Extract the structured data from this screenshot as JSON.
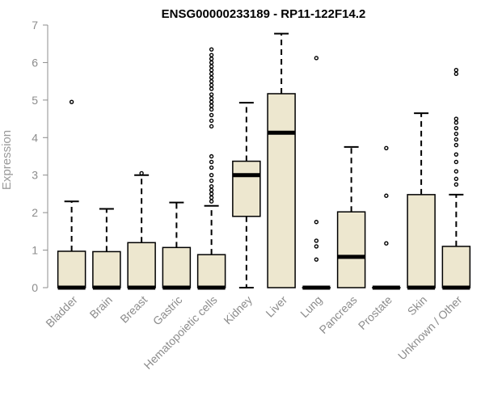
{
  "chart_data": {
    "type": "boxplot",
    "title": "ENSG00000233189 - RP11-122F14.2",
    "xlabel": "",
    "ylabel": "Expression",
    "ylim": [
      0,
      7
    ],
    "yticks": [
      0,
      1,
      2,
      3,
      4,
      5,
      6,
      7
    ],
    "grid": false,
    "colors": {
      "box_fill": "#ede7cf",
      "stroke": "#000000",
      "axis": "#8c8c8c",
      "text": "#8c8c8c"
    },
    "categories": [
      "Bladder",
      "Brain",
      "Breast",
      "Gastric",
      "Hematopoietic cells",
      "Kidney",
      "Liver",
      "Lung",
      "Pancreas",
      "Prostate",
      "Skin",
      "Unknown / Other"
    ],
    "boxes": [
      {
        "category": "Bladder",
        "lower_whisker": 0,
        "q1": 0,
        "median": 0,
        "q3": 0.97,
        "upper_whisker": 2.3,
        "outliers": [
          4.95
        ]
      },
      {
        "category": "Brain",
        "lower_whisker": 0,
        "q1": 0,
        "median": 0,
        "q3": 0.96,
        "upper_whisker": 2.1,
        "outliers": []
      },
      {
        "category": "Breast",
        "lower_whisker": 0,
        "q1": 0,
        "median": 0,
        "q3": 1.2,
        "upper_whisker": 3.0,
        "outliers": [
          3.05
        ]
      },
      {
        "category": "Gastric",
        "lower_whisker": 0,
        "q1": 0,
        "median": 0,
        "q3": 1.07,
        "upper_whisker": 2.27,
        "outliers": []
      },
      {
        "category": "Hematopoietic cells",
        "lower_whisker": 0,
        "q1": 0,
        "median": 0,
        "q3": 0.88,
        "upper_whisker": 2.18,
        "outliers": [
          2.3,
          2.4,
          2.5,
          2.6,
          2.7,
          2.85,
          3.0,
          3.2,
          3.35,
          3.5,
          4.3,
          4.45,
          4.6,
          4.75,
          4.85,
          4.95,
          5.05,
          5.15,
          5.3,
          5.4,
          5.5,
          5.6,
          5.7,
          5.8,
          5.9,
          6.0,
          6.1,
          6.2,
          6.35
        ]
      },
      {
        "category": "Kidney",
        "lower_whisker": 0,
        "q1": 1.9,
        "median": 3.0,
        "q3": 3.37,
        "upper_whisker": 4.93,
        "outliers": []
      },
      {
        "category": "Liver",
        "lower_whisker": 0,
        "q1": 0,
        "median": 4.13,
        "q3": 5.17,
        "upper_whisker": 6.77,
        "outliers": []
      },
      {
        "category": "Lung",
        "lower_whisker": 0,
        "q1": 0,
        "median": 0,
        "q3": 0,
        "upper_whisker": 0,
        "outliers": [
          0.75,
          1.1,
          1.25,
          1.75,
          6.12
        ]
      },
      {
        "category": "Pancreas",
        "lower_whisker": 0,
        "q1": 0,
        "median": 0.82,
        "q3": 2.02,
        "upper_whisker": 3.75,
        "outliers": []
      },
      {
        "category": "Prostate",
        "lower_whisker": 0,
        "q1": 0,
        "median": 0,
        "q3": 0,
        "upper_whisker": 0,
        "outliers": [
          1.18,
          2.45,
          3.72
        ]
      },
      {
        "category": "Skin",
        "lower_whisker": 0,
        "q1": 0,
        "median": 0,
        "q3": 2.48,
        "upper_whisker": 4.65,
        "outliers": []
      },
      {
        "category": "Unknown / Other",
        "lower_whisker": 0,
        "q1": 0,
        "median": 0,
        "q3": 1.1,
        "upper_whisker": 2.48,
        "outliers": [
          2.75,
          2.9,
          3.1,
          3.35,
          3.55,
          3.8,
          3.95,
          4.1,
          4.25,
          4.4,
          4.5,
          5.7,
          5.8
        ]
      }
    ]
  }
}
